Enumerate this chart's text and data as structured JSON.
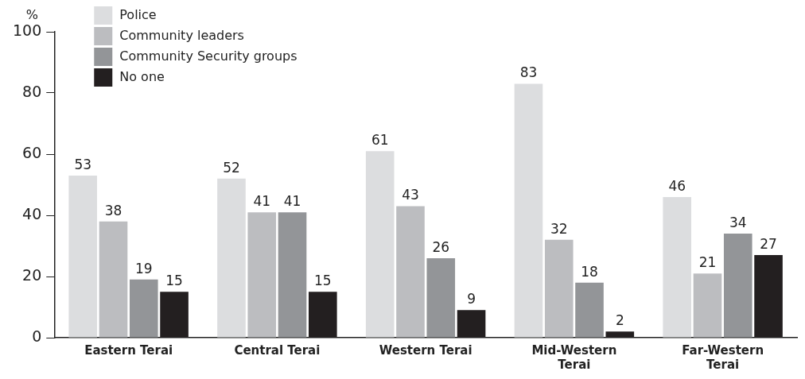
{
  "chart_data": {
    "type": "bar",
    "ylabel": "%",
    "categories": [
      "Eastern Terai",
      "Central Terai",
      "Western Terai",
      "Mid-Western Terai",
      "Far-Western Terai"
    ],
    "series": [
      {
        "name": "Police",
        "color": "#dcdddf",
        "values": [
          53,
          52,
          61,
          83,
          46
        ]
      },
      {
        "name": "Community leaders",
        "color": "#bcbdc0",
        "values": [
          38,
          41,
          43,
          32,
          21
        ]
      },
      {
        "name": "Community Security groups",
        "color": "#939598",
        "values": [
          19,
          41,
          26,
          18,
          34
        ]
      },
      {
        "name": "No one",
        "color": "#231f20",
        "values": [
          15,
          15,
          9,
          2,
          27
        ]
      }
    ],
    "ylim": [
      0,
      100
    ],
    "yticks": [
      0,
      20,
      40,
      60,
      80,
      100
    ],
    "grid": false,
    "legend": "top left",
    "data_labels": true
  }
}
